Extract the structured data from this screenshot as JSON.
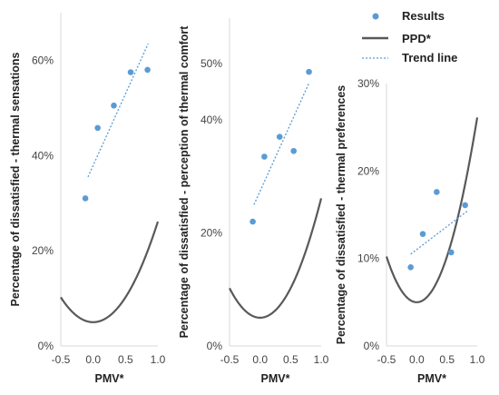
{
  "colors": {
    "results": "#5b9bd5",
    "ppd": "#595959",
    "trend": "#5b9bd5",
    "axis": "#d9d9d9"
  },
  "legend": {
    "results": "Results",
    "ppd": "PPD*",
    "trend": "Trend line"
  },
  "chart_data": [
    {
      "type": "scatter",
      "xlabel": "PMV*",
      "ylabel": "Percentage of dissatisfied - thermal sensations",
      "xlim": [
        -0.5,
        1.0
      ],
      "ylim": [
        0,
        70
      ],
      "x_ticks": [
        "-0.5",
        "0.0",
        "0.5",
        "1.0"
      ],
      "y_ticks": [
        {
          "v": 0,
          "label": "0%"
        },
        {
          "v": 20,
          "label": "20%"
        },
        {
          "v": 40,
          "label": "40%"
        },
        {
          "v": 60,
          "label": "60%"
        }
      ],
      "series": [
        {
          "name": "Results",
          "points": [
            [
              -0.12,
              31
            ],
            [
              0.07,
              45.8
            ],
            [
              0.32,
              50.5
            ],
            [
              0.58,
              57.5
            ],
            [
              0.84,
              58
            ]
          ]
        },
        {
          "name": "Trend line",
          "points": [
            [
              -0.08,
              35.5
            ],
            [
              0.85,
              63.5
            ]
          ]
        }
      ]
    },
    {
      "type": "scatter",
      "xlabel": "PMV*",
      "ylabel": "Percentage of dissatisfied - perception of thermal comfort",
      "xlim": [
        -0.5,
        1.0
      ],
      "ylim": [
        0,
        58
      ],
      "x_ticks": [
        "-0.5",
        "0.0",
        "0.5",
        "1.0"
      ],
      "y_ticks": [
        {
          "v": 0,
          "label": "0%"
        },
        {
          "v": 20,
          "label": "20%"
        },
        {
          "v": 40,
          "label": "40%"
        },
        {
          "v": 50,
          "label": "50%"
        }
      ],
      "series": [
        {
          "name": "Results",
          "points": [
            [
              -0.12,
              22
            ],
            [
              0.07,
              33.5
            ],
            [
              0.32,
              37
            ],
            [
              0.55,
              34.5
            ],
            [
              0.8,
              48.5
            ]
          ]
        },
        {
          "name": "Trend line",
          "points": [
            [
              -0.1,
              25
            ],
            [
              0.8,
              46.5
            ]
          ]
        }
      ]
    },
    {
      "type": "scatter",
      "xlabel": "PMV*",
      "ylabel": "Percentage of dissatisfied - thermal preferences",
      "xlim": [
        -0.5,
        1.0
      ],
      "ylim": [
        0,
        30
      ],
      "x_ticks": [
        "-0.5",
        "0.0",
        "0.5",
        "1.0"
      ],
      "y_ticks": [
        {
          "v": 0,
          "label": "0%"
        },
        {
          "v": 10,
          "label": "10%"
        },
        {
          "v": 20,
          "label": "20%"
        },
        {
          "v": 30,
          "label": "30%"
        }
      ],
      "series": [
        {
          "name": "Results",
          "points": [
            [
              -0.1,
              9
            ],
            [
              0.1,
              12.8
            ],
            [
              0.33,
              17.6
            ],
            [
              0.57,
              10.7
            ],
            [
              0.8,
              16.1
            ]
          ]
        },
        {
          "name": "Trend line",
          "points": [
            [
              -0.1,
              10.5
            ],
            [
              0.85,
              15.5
            ]
          ]
        }
      ]
    }
  ]
}
